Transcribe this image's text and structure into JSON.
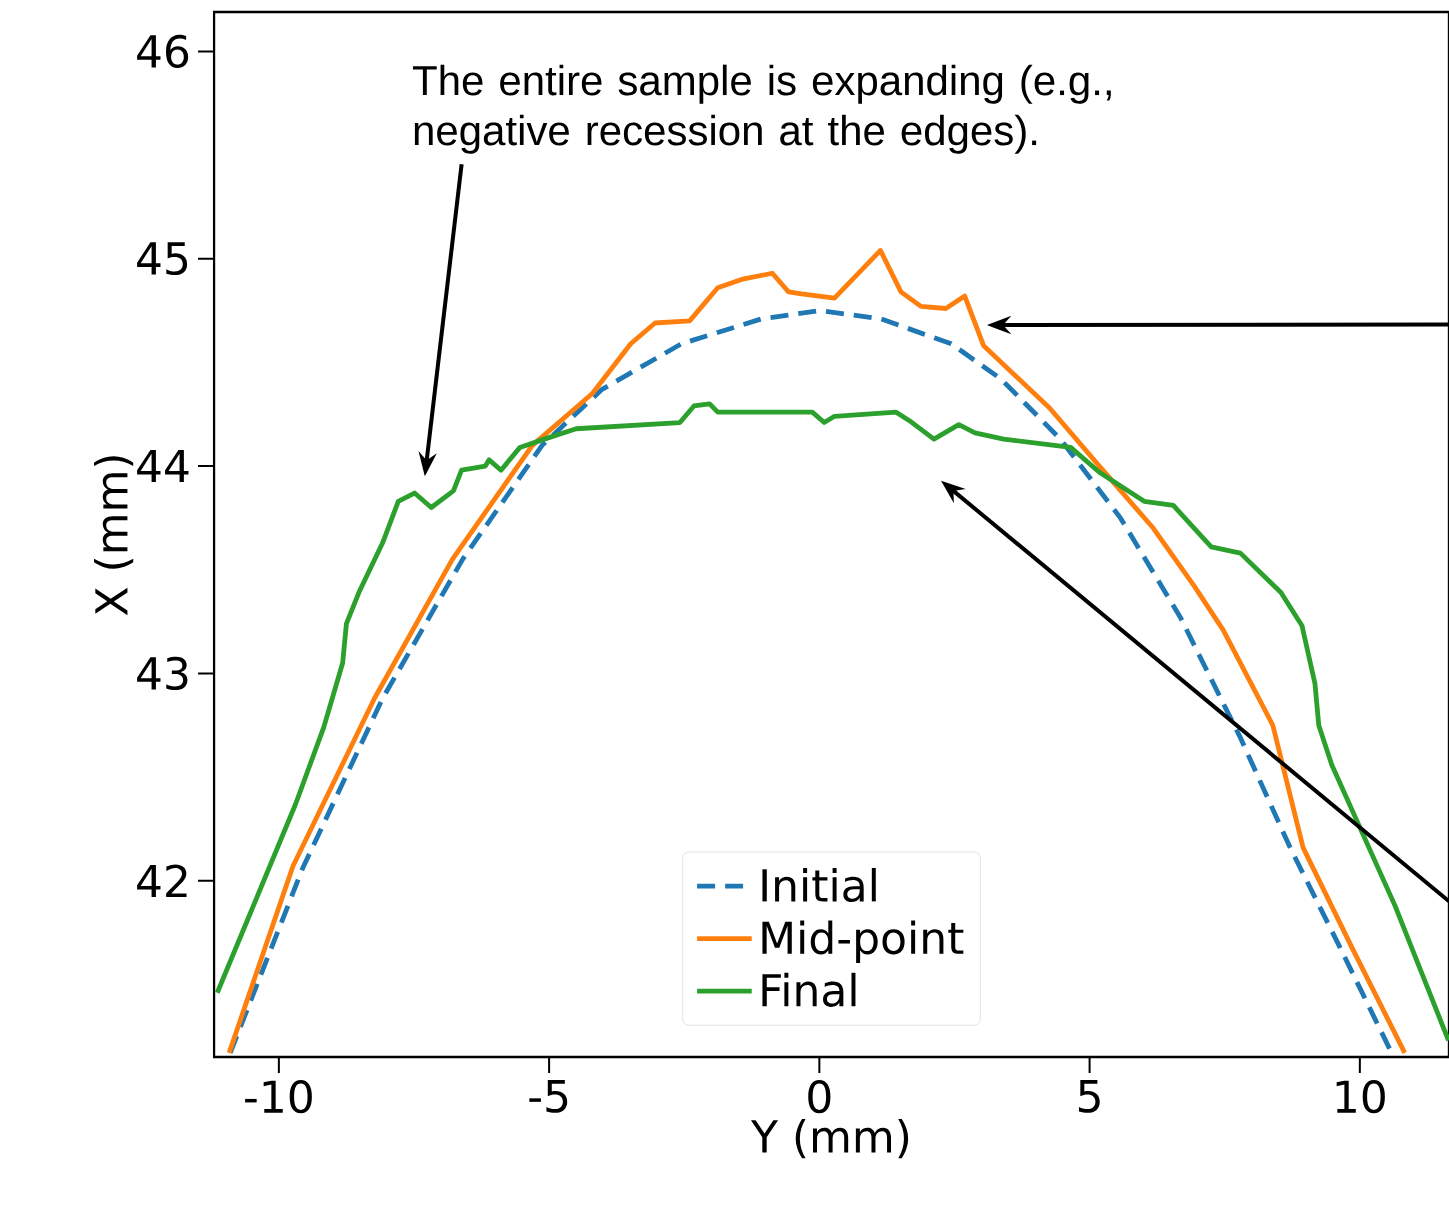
{
  "chart_data": {
    "type": "line",
    "xlabel": "Y (mm)",
    "ylabel": "X (mm)",
    "xlim": [
      -11.2,
      11.65
    ],
    "ylim": [
      41.15,
      46.19
    ],
    "xticks": [
      -10,
      -5,
      0,
      5,
      10
    ],
    "yticks": [
      42,
      43,
      44,
      45,
      46
    ],
    "legend": "bottom",
    "grid": false,
    "annotations": [
      "The entire sample is expanding (e.g., negative recession at the edges)."
    ],
    "series": [
      {
        "name": "Initial",
        "color": "#1f77b4",
        "line_style": "dashed",
        "x": [
          -10.9,
          -9.56,
          -8.08,
          -6.6,
          -5.13,
          -4.02,
          -2.55,
          -1.07,
          0,
          1.14,
          2.44,
          3.36,
          4.46,
          5.57,
          6.68,
          7.79,
          8.71,
          9.63,
          10.55
        ],
        "values": [
          41.17,
          42.06,
          42.88,
          43.55,
          44.1,
          44.37,
          44.59,
          44.71,
          44.75,
          44.71,
          44.59,
          44.42,
          44.13,
          43.75,
          43.27,
          42.69,
          42.16,
          41.68,
          41.19
        ]
      },
      {
        "name": "Mid-point",
        "color": "#ff7f0e",
        "line_style": "solid",
        "x": [
          -10.92,
          -9.74,
          -8.23,
          -6.79,
          -5.31,
          -4.2,
          -3.49,
          -3.04,
          -2.4,
          -1.88,
          -1.44,
          -0.87,
          -0.57,
          -0.33,
          0.28,
          1.13,
          1.51,
          1.88,
          2.34,
          2.69,
          3.04,
          4.26,
          5.18,
          6.18,
          6.94,
          7.47,
          8.39,
          8.95,
          9.85,
          10.83
        ],
        "values": [
          41.17,
          42.07,
          42.88,
          43.55,
          44.1,
          44.35,
          44.59,
          44.69,
          44.7,
          44.86,
          44.9,
          44.93,
          44.84,
          44.83,
          44.81,
          45.04,
          44.84,
          44.77,
          44.76,
          44.82,
          44.58,
          44.28,
          44.0,
          43.7,
          43.42,
          43.21,
          42.75,
          42.16,
          41.68,
          41.17
        ]
      },
      {
        "name": "Final",
        "color": "#2ca02c",
        "line_style": "solid",
        "x": [
          -11.14,
          -9.69,
          -9.17,
          -8.82,
          -8.75,
          -8.52,
          -8.08,
          -7.79,
          -7.49,
          -7.18,
          -6.77,
          -6.62,
          -6.18,
          -6.11,
          -5.89,
          -5.54,
          -5.09,
          -4.5,
          -2.58,
          -2.32,
          -2.03,
          -1.88,
          -0.13,
          0.09,
          0.28,
          1.42,
          1.66,
          2.12,
          2.58,
          2.88,
          3.41,
          4.65,
          5.18,
          6.01,
          6.55,
          7.25,
          7.79,
          8.54,
          8.93,
          9.17,
          9.24,
          9.48,
          10.65,
          11.64
        ],
        "values": [
          41.46,
          42.37,
          42.74,
          43.05,
          43.24,
          43.39,
          43.63,
          43.83,
          43.87,
          43.8,
          43.88,
          43.98,
          44.0,
          44.03,
          43.98,
          44.09,
          44.13,
          44.18,
          44.21,
          44.29,
          44.3,
          44.26,
          44.26,
          44.21,
          44.24,
          44.26,
          44.22,
          44.13,
          44.2,
          44.16,
          44.13,
          44.09,
          43.97,
          43.83,
          43.81,
          43.61,
          43.58,
          43.39,
          43.23,
          42.95,
          42.75,
          42.56,
          41.88,
          41.23
        ]
      }
    ]
  }
}
